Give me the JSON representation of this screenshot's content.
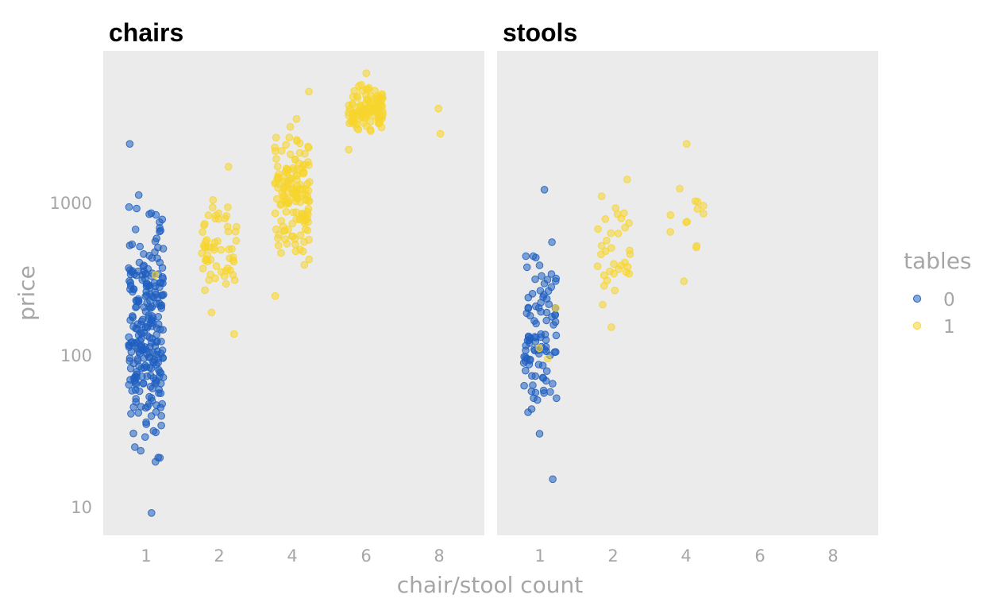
{
  "chart_data": {
    "type": "scatter",
    "xlabel": "chair/stool count",
    "ylabel": "price",
    "y_scale": "log10",
    "ylim": [
      6.5,
      9000
    ],
    "x_categories": [
      "1",
      "2",
      "4",
      "6",
      "8"
    ],
    "y_ticks": [
      "10",
      "100",
      "1000"
    ],
    "grid": false,
    "legend": {
      "title": "tables",
      "placement": "right",
      "entries": [
        {
          "label": "0",
          "color": "#1f5fbf"
        },
        {
          "label": "1",
          "color": "#f7d52d"
        }
      ]
    },
    "panels": [
      {
        "title": "chairs",
        "series": [
          {
            "name": "0",
            "groups": [
              {
                "x": "1",
                "n": 260,
                "min": 9,
                "max": 2400
              }
            ]
          },
          {
            "name": "1",
            "groups": [
              {
                "x": "1",
                "n": 1,
                "min": 330,
                "max": 330
              },
              {
                "x": "2",
                "n": 60,
                "min": 135,
                "max": 1700
              },
              {
                "x": "4",
                "n": 150,
                "min": 240,
                "max": 5300
              },
              {
                "x": "6",
                "n": 110,
                "min": 2200,
                "max": 7000
              },
              {
                "x": "8",
                "n": 2,
                "min": 2800,
                "max": 4100
              }
            ]
          }
        ]
      },
      {
        "title": "stools",
        "series": [
          {
            "name": "0",
            "groups": [
              {
                "x": "1",
                "n": 100,
                "min": 15,
                "max": 1200
              }
            ]
          },
          {
            "name": "1",
            "groups": [
              {
                "x": "1",
                "n": 3,
                "min": 93,
                "max": 200
              },
              {
                "x": "2",
                "n": 35,
                "min": 150,
                "max": 1400
              },
              {
                "x": "4",
                "n": 14,
                "min": 300,
                "max": 2400
              }
            ]
          }
        ]
      }
    ]
  }
}
